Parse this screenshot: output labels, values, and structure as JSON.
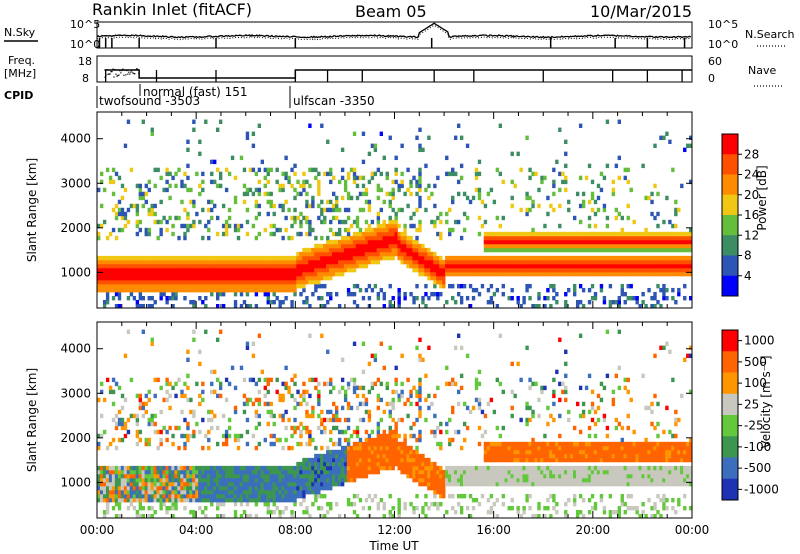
{
  "title": "Rankin Inlet (fitACF)",
  "beam": "Beam 05",
  "date": "10/Mar/2015",
  "header_labels": {
    "nsky": "N.Sky",
    "nsearch": "N.Search",
    "freq_line1": "Freq.",
    "freq_line2": "[MHz]",
    "nave": "Nave",
    "cpid": "CPID"
  },
  "header_ticks": {
    "noise_left": [
      "10^5",
      "10^0"
    ],
    "noise_right": [
      "10^5",
      "10^0"
    ],
    "freq_left": [
      "18",
      "8"
    ],
    "nave_right": [
      "60",
      "0"
    ]
  },
  "cpid_labels": [
    {
      "text": "twofsound -3503",
      "hour": 0.3
    },
    {
      "text": "normal (fast) 151",
      "hour": 1.8
    },
    {
      "text": "ulfscan -3350",
      "hour": 8.0
    }
  ],
  "colors": {
    "power": [
      "#0000ff",
      "#2d55b4",
      "#3c8c64",
      "#64be3c",
      "#f0c814",
      "#ff8c00",
      "#ff5000",
      "#ff0000"
    ],
    "velocity": [
      "#1e32b4",
      "#3c6ebe",
      "#3c9650",
      "#64c83c",
      "#c8c8be",
      "#ff9600",
      "#ff6400",
      "#ff0000"
    ]
  },
  "chart_data": [
    {
      "type": "heatmap",
      "name": "Power",
      "ylabel": "Slant Range [km]",
      "xlabel": "Time UT",
      "xlim": [
        0,
        24
      ],
      "ylim": [
        200,
        4600
      ],
      "xticks": [
        "00:00",
        "04:00",
        "08:00",
        "12:00",
        "16:00",
        "20:00",
        "00:00"
      ],
      "yticks": [
        "1000",
        "2000",
        "3000",
        "4000"
      ],
      "colorbar": {
        "label": "Power [dB]",
        "ticks": [
          "4",
          "8",
          "12",
          "16",
          "20",
          "24",
          "28"
        ],
        "range": [
          0,
          32
        ]
      }
    },
    {
      "type": "heatmap",
      "name": "Velocity",
      "ylabel": "Slant Range [km]",
      "xlabel": "Time UT",
      "xlim": [
        0,
        24
      ],
      "ylim": [
        200,
        4600
      ],
      "xticks": [
        "00:00",
        "04:00",
        "08:00",
        "12:00",
        "16:00",
        "20:00",
        "00:00"
      ],
      "yticks": [
        "1000",
        "2000",
        "3000",
        "4000"
      ],
      "colorbar": {
        "label": "Velocity [m s⁻¹]",
        "ticks": [
          "1000",
          "500",
          "100",
          "25",
          "-25",
          "-100",
          "-500",
          "-1000"
        ],
        "range": [
          -1000,
          1000
        ]
      }
    }
  ]
}
